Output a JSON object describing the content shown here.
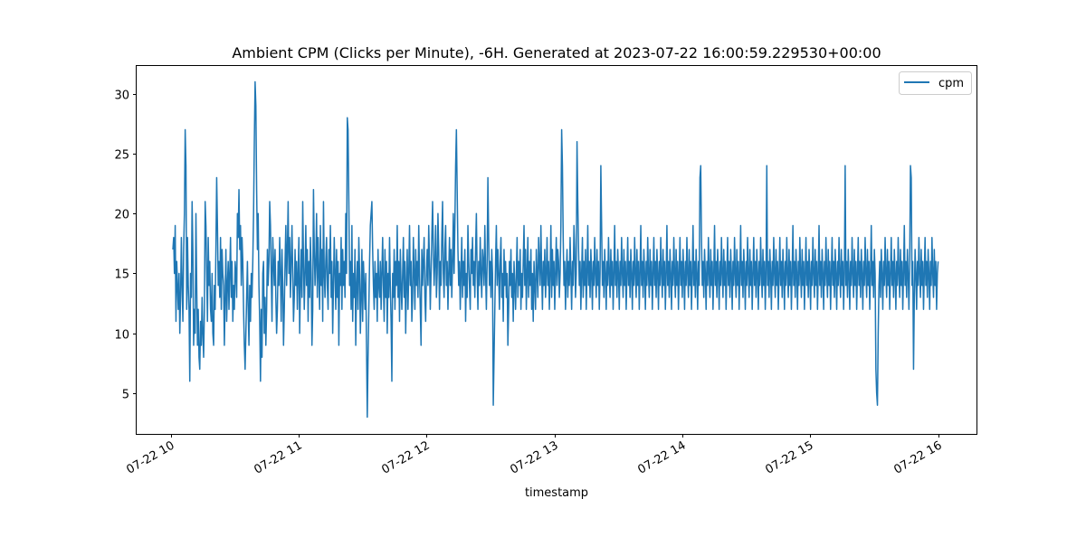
{
  "chart_data": {
    "type": "line",
    "title": "Ambient CPM (Clicks per Minute), -6H. Generated at 2023-07-22 16:00:59.229530+00:00",
    "xlabel": "timestamp",
    "ylabel": "",
    "xlim": [
      "2023-07-22 09:44",
      "2023-07-22 16:18"
    ],
    "ylim": [
      1.6,
      32.4
    ],
    "grid": false,
    "legend_position": "upper right",
    "x_ticks": [
      {
        "value": "2023-07-22 10:00",
        "label": "07-22 10"
      },
      {
        "value": "2023-07-22 11:00",
        "label": "07-22 11"
      },
      {
        "value": "2023-07-22 12:00",
        "label": "07-22 12"
      },
      {
        "value": "2023-07-22 13:00",
        "label": "07-22 13"
      },
      {
        "value": "2023-07-22 14:00",
        "label": "07-22 14"
      },
      {
        "value": "2023-07-22 15:00",
        "label": "07-22 15"
      },
      {
        "value": "2023-07-22 16:00",
        "label": "07-22 16"
      }
    ],
    "y_ticks": [
      5,
      10,
      15,
      20,
      25,
      30
    ],
    "x_start": "2023-07-22 10:01",
    "x_step_minutes": 1,
    "series": [
      {
        "name": "cpm",
        "color": "#1f77b4",
        "values": [
          17,
          18,
          15,
          19,
          11,
          16,
          14,
          12,
          15,
          10,
          13,
          18,
          14,
          11,
          17,
          20,
          27,
          24,
          12,
          18,
          14,
          12,
          6,
          15,
          13,
          21,
          17,
          9,
          12,
          10,
          20,
          14,
          9,
          12,
          8,
          7,
          11,
          9,
          13,
          10,
          8,
          12,
          21,
          19,
          15,
          11,
          18,
          14,
          16,
          12,
          11,
          15,
          10,
          9,
          14,
          12,
          17,
          23,
          19,
          14,
          16,
          13,
          18,
          12,
          17,
          15,
          14,
          9,
          13,
          17,
          11,
          14,
          16,
          12,
          15,
          18,
          13,
          16,
          11,
          14,
          12,
          16,
          15,
          13,
          20,
          18,
          22,
          17,
          19,
          14,
          18,
          16,
          12,
          9,
          7,
          10,
          13,
          16,
          12,
          9,
          14,
          11,
          15,
          13,
          16,
          20,
          26,
          31,
          29,
          22,
          17,
          20,
          14,
          11,
          6,
          12,
          8,
          15,
          16,
          10,
          13,
          9,
          12,
          17,
          14,
          16,
          21,
          19,
          15,
          11,
          18,
          16,
          14,
          17,
          13,
          10,
          12,
          16,
          14,
          18,
          15,
          11,
          17,
          14,
          9,
          12,
          16,
          19,
          14,
          17,
          21,
          15,
          18,
          13,
          16,
          19,
          15,
          11,
          13,
          17,
          14,
          16,
          12,
          15,
          18,
          10,
          14,
          17,
          13,
          21,
          16,
          12,
          15,
          19,
          14,
          17,
          11,
          16,
          13,
          18,
          15,
          9,
          12,
          22,
          17,
          14,
          16,
          20,
          13,
          18,
          15,
          12,
          19,
          14,
          17,
          11,
          21,
          15,
          13,
          16,
          18,
          14,
          12,
          17,
          15,
          19,
          13,
          16,
          10,
          14,
          18,
          15,
          12,
          17,
          13,
          16,
          9,
          15,
          14,
          18,
          12,
          17,
          14,
          16,
          13,
          20,
          15,
          28,
          27,
          21,
          14,
          16,
          12,
          19,
          11,
          15,
          13,
          17,
          9,
          14,
          16,
          12,
          18,
          15,
          10,
          13,
          17,
          11,
          16,
          14,
          12,
          15,
          9,
          3,
          8,
          12,
          16,
          19,
          20,
          21,
          17,
          14,
          12,
          16,
          13,
          15,
          11,
          17,
          14,
          13,
          16,
          12,
          15,
          18,
          14,
          11,
          17,
          13,
          16,
          10,
          15,
          13,
          18,
          14,
          11,
          6,
          15,
          13,
          17,
          12,
          16,
          14,
          19,
          13,
          16,
          11,
          17,
          14,
          12,
          15,
          18,
          13,
          16,
          10,
          14,
          17,
          12,
          15,
          19,
          14,
          16,
          11,
          13,
          18,
          15,
          12,
          17,
          14,
          16,
          13,
          19,
          15,
          12,
          9,
          17,
          14,
          16,
          18,
          13,
          11,
          15,
          17,
          14,
          19,
          16,
          12,
          15,
          18,
          21,
          17,
          14,
          16,
          19,
          13,
          15,
          20,
          17,
          12,
          16,
          14,
          18,
          21,
          15,
          13,
          17,
          19,
          14,
          16,
          12,
          15,
          18,
          14,
          17,
          13,
          16,
          20,
          15,
          19,
          24,
          27,
          22,
          17,
          14,
          16,
          12,
          15,
          18,
          13,
          16,
          14,
          17,
          11,
          15,
          13,
          19,
          16,
          14,
          12,
          17,
          15,
          18,
          14,
          16,
          13,
          17,
          20,
          15,
          12,
          16,
          14,
          18,
          15,
          13,
          17,
          16,
          14,
          19,
          15,
          12,
          16,
          23,
          18,
          14,
          16,
          13,
          17,
          15,
          4,
          8,
          12,
          16,
          19,
          14,
          17,
          15,
          12,
          16,
          18,
          13,
          15,
          11,
          17,
          14,
          16,
          13,
          15,
          9,
          12,
          16,
          14,
          17,
          13,
          15,
          11,
          16,
          14,
          12,
          15,
          18,
          13,
          16,
          14,
          17,
          12,
          15,
          13,
          16,
          19,
          14,
          17,
          12,
          15,
          18,
          13,
          16,
          14,
          17,
          12,
          15,
          11,
          16,
          14,
          12,
          17,
          15,
          13,
          18,
          16,
          14,
          19,
          15,
          12,
          16,
          14,
          17,
          13,
          15,
          18,
          14,
          16,
          12,
          15,
          19,
          13,
          17,
          14,
          16,
          12,
          15,
          18,
          14,
          17,
          16,
          13,
          15,
          19,
          27,
          24,
          18,
          14,
          16,
          12,
          15,
          17,
          13,
          16,
          14,
          18,
          15,
          12,
          16,
          14,
          19,
          17,
          13,
          15,
          26,
          21,
          17,
          14,
          16,
          12,
          15,
          18,
          13,
          16,
          14,
          17,
          12,
          15,
          19,
          14,
          16,
          13,
          17,
          15,
          12,
          16,
          14,
          18,
          15,
          13,
          17,
          14,
          16,
          12,
          15,
          24,
          19,
          14,
          16,
          13,
          17,
          15,
          12,
          16,
          14,
          18,
          15,
          13,
          17,
          14,
          16,
          12,
          15,
          19,
          14,
          16,
          13,
          17,
          15,
          12,
          16,
          14,
          18,
          15,
          13,
          17,
          14,
          16,
          12,
          15,
          18,
          14,
          16,
          13,
          17,
          15,
          12,
          16,
          14,
          18,
          15,
          13,
          17,
          14,
          16,
          12,
          15,
          19,
          14,
          16,
          13,
          17,
          15,
          12,
          16,
          14,
          18,
          15,
          13,
          17,
          14,
          16,
          12,
          15,
          18,
          14,
          16,
          13,
          17,
          15,
          12,
          16,
          14,
          18,
          15,
          13,
          17,
          14,
          16,
          12,
          15,
          19,
          14,
          16,
          13,
          17,
          15,
          12,
          16,
          14,
          18,
          15,
          13,
          17,
          14,
          16,
          12,
          15,
          18,
          14,
          16,
          13,
          17,
          15,
          12,
          16,
          14,
          18,
          15,
          13,
          17,
          14,
          16,
          12,
          15,
          19,
          14,
          16,
          13,
          17,
          15,
          12,
          16,
          14,
          23,
          24,
          18,
          14,
          16,
          13,
          17,
          15,
          12,
          16,
          14,
          18,
          15,
          13,
          17,
          14,
          16,
          12,
          15,
          19,
          14,
          16,
          13,
          17,
          15,
          12,
          16,
          14,
          18,
          15,
          13,
          17,
          14,
          16,
          12,
          15,
          18,
          14,
          16,
          13,
          17,
          15,
          12,
          16,
          14,
          18,
          15,
          13,
          17,
          14,
          16,
          12,
          15,
          19,
          14,
          16,
          13,
          17,
          15,
          12,
          16,
          14,
          18,
          15,
          13,
          17,
          14,
          16,
          12,
          15,
          18,
          14,
          16,
          13,
          17,
          15,
          12,
          16,
          14,
          18,
          15,
          13,
          17,
          14,
          16,
          12,
          15,
          24,
          14,
          16,
          13,
          17,
          15,
          12,
          16,
          14,
          18,
          15,
          13,
          17,
          14,
          16,
          12,
          15,
          18,
          14,
          16,
          13,
          17,
          15,
          12,
          16,
          14,
          18,
          15,
          13,
          17,
          14,
          16,
          12,
          15,
          19,
          14,
          16,
          13,
          17,
          15,
          12,
          16,
          14,
          18,
          15,
          13,
          17,
          14,
          16,
          12,
          15,
          18,
          14,
          16,
          13,
          17,
          15,
          12,
          16,
          14,
          18,
          15,
          13,
          17,
          14,
          16,
          12,
          15,
          19,
          14,
          16,
          13,
          17,
          15,
          12,
          16,
          14,
          18,
          15,
          13,
          17,
          14,
          16,
          12,
          15,
          18,
          14,
          16,
          13,
          17,
          15,
          12,
          16,
          14,
          18,
          15,
          13,
          17,
          14,
          16,
          12,
          15,
          24,
          14,
          16,
          13,
          17,
          15,
          12,
          16,
          14,
          18,
          15,
          13,
          17,
          14,
          16,
          12,
          15,
          18,
          14,
          16,
          13,
          17,
          15,
          12,
          16,
          14,
          18,
          15,
          13,
          17,
          14,
          16,
          12,
          15,
          19,
          14,
          16,
          13,
          17,
          15,
          7,
          5,
          4,
          10,
          14,
          16,
          13,
          17,
          15,
          12,
          16,
          14,
          18,
          15,
          13,
          17,
          14,
          16,
          12,
          15,
          18,
          14,
          16,
          13,
          17,
          15,
          12,
          16,
          14,
          18,
          15,
          13,
          17,
          14,
          16,
          12,
          15,
          19,
          14,
          16,
          13,
          17,
          15,
          12,
          16,
          24,
          23,
          14,
          16,
          7,
          13,
          17,
          15,
          12,
          16,
          14,
          18,
          15,
          13,
          17,
          14,
          16,
          12,
          15,
          18,
          14,
          16,
          13,
          17,
          15,
          12,
          16,
          14,
          18,
          15,
          13,
          17,
          14,
          16,
          12,
          15,
          16
        ]
      }
    ]
  }
}
